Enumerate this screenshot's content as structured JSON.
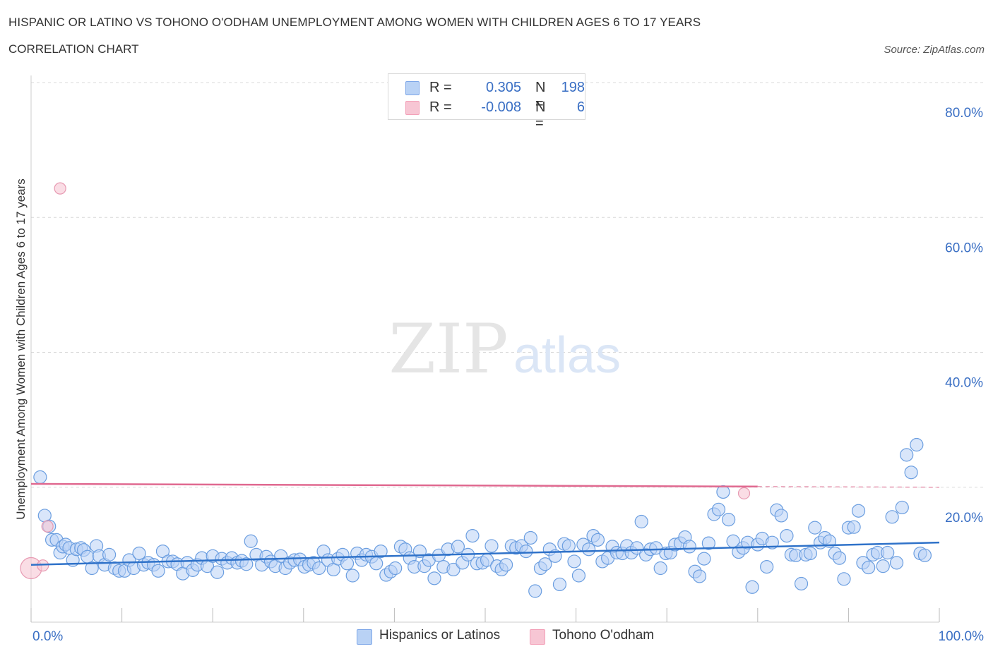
{
  "header": {
    "title": "HISPANIC OR LATINO VS TOHONO O'ODHAM UNEMPLOYMENT AMONG WOMEN WITH CHILDREN AGES 6 TO 17 YEARS",
    "subtitle": "CORRELATION CHART",
    "source": "Source: ZipAtlas.com"
  },
  "watermark": {
    "zip": "ZIP",
    "atlas": "atlas"
  },
  "legend": {
    "r_label": "R =",
    "n_label": "N =",
    "series": [
      {
        "name": "Hispanics or Latinos",
        "r": "0.305",
        "n": "198",
        "color": "#7fa8e8"
      },
      {
        "name": "Tohono O'odham",
        "r": "-0.008",
        "n": "6",
        "color": "#f3a0b8"
      }
    ]
  },
  "colors": {
    "blue_fill": "#b9d2f5",
    "blue_stroke": "#6b9ee0",
    "blue_line": "#2f72c9",
    "pink_fill": "#f7c6d4",
    "pink_stroke": "#e79ab2",
    "pink_line": "#e06990",
    "grid": "#d9d9d9",
    "tick_text": "#3a6fc4"
  },
  "chart_data": {
    "type": "scatter",
    "title": "HISPANIC OR LATINO VS TOHONO O'ODHAM UNEMPLOYMENT AMONG WOMEN WITH CHILDREN AGES 6 TO 17 YEARS",
    "xlabel": "",
    "ylabel": "Unemployment Among Women with Children Ages 6 to 17 years",
    "xlim": [
      0,
      100
    ],
    "ylim": [
      0,
      80
    ],
    "x_tick_labels": [
      "0.0%",
      "100.0%"
    ],
    "y_ticks": [
      20,
      40,
      60,
      80
    ],
    "y_tick_labels": [
      "20.0%",
      "40.0%",
      "60.0%",
      "80.0%"
    ],
    "series": [
      {
        "name": "Hispanics or Latinos",
        "r": 0.305,
        "n": 198,
        "trend": {
          "x": [
            0,
            100
          ],
          "y": [
            8.5,
            11.8
          ]
        },
        "points": [
          [
            1,
            21.5
          ],
          [
            1.5,
            15.8
          ],
          [
            2,
            14.2
          ],
          [
            2.3,
            12.2
          ],
          [
            2.8,
            12.2
          ],
          [
            3.2,
            10.3
          ],
          [
            3.5,
            11.2
          ],
          [
            3.8,
            11.5
          ],
          [
            4.2,
            11
          ],
          [
            4.6,
            9.2
          ],
          [
            5,
            10.8
          ],
          [
            5.5,
            11
          ],
          [
            5.8,
            10.7
          ],
          [
            6.2,
            9.7
          ],
          [
            6.7,
            8
          ],
          [
            7.2,
            11.3
          ],
          [
            7.5,
            9.8
          ],
          [
            8.1,
            8.5
          ],
          [
            8.6,
            10
          ],
          [
            9.2,
            8
          ],
          [
            9.7,
            7.6
          ],
          [
            10.3,
            7.6
          ],
          [
            10.8,
            9.2
          ],
          [
            11.3,
            8
          ],
          [
            11.9,
            10.2
          ],
          [
            12.4,
            8.5
          ],
          [
            12.9,
            8.8
          ],
          [
            13.5,
            8.5
          ],
          [
            14,
            7.6
          ],
          [
            14.5,
            10.5
          ],
          [
            15.1,
            9
          ],
          [
            15.6,
            9
          ],
          [
            16.1,
            8.6
          ],
          [
            16.7,
            7.2
          ],
          [
            17.2,
            8.8
          ],
          [
            17.8,
            7.7
          ],
          [
            18.3,
            8.5
          ],
          [
            18.8,
            9.5
          ],
          [
            19.4,
            8.3
          ],
          [
            20,
            9.8
          ],
          [
            20.5,
            7.4
          ],
          [
            21,
            9.4
          ],
          [
            21.6,
            8.8
          ],
          [
            22.1,
            9.5
          ],
          [
            22.7,
            8.8
          ],
          [
            23.2,
            9.1
          ],
          [
            23.7,
            8.6
          ],
          [
            24.2,
            12
          ],
          [
            24.8,
            10
          ],
          [
            25.4,
            8.5
          ],
          [
            25.9,
            9.7
          ],
          [
            26.4,
            9
          ],
          [
            26.9,
            8.3
          ],
          [
            27.5,
            9.8
          ],
          [
            28,
            8
          ],
          [
            28.5,
            8.8
          ],
          [
            29,
            9.2
          ],
          [
            29.6,
            9.3
          ],
          [
            30.1,
            8.2
          ],
          [
            30.6,
            8.5
          ],
          [
            31.1,
            8.8
          ],
          [
            31.7,
            8
          ],
          [
            32.2,
            10.5
          ],
          [
            32.7,
            9.2
          ],
          [
            33.3,
            7.8
          ],
          [
            33.8,
            9.4
          ],
          [
            34.3,
            10
          ],
          [
            34.8,
            8.7
          ],
          [
            35.4,
            6.9
          ],
          [
            35.9,
            10.2
          ],
          [
            36.4,
            9.2
          ],
          [
            36.9,
            10
          ],
          [
            37.5,
            9.7
          ],
          [
            38,
            8.7
          ],
          [
            38.5,
            10.5
          ],
          [
            39.1,
            7
          ],
          [
            39.6,
            7.5
          ],
          [
            40.1,
            8
          ],
          [
            40.7,
            11.2
          ],
          [
            41.2,
            10.8
          ],
          [
            41.7,
            9.5
          ],
          [
            42.2,
            8.2
          ],
          [
            42.8,
            10.5
          ],
          [
            43.3,
            8.3
          ],
          [
            43.8,
            9.2
          ],
          [
            44.4,
            6.5
          ],
          [
            44.9,
            9.9
          ],
          [
            45.4,
            8.2
          ],
          [
            45.9,
            10.8
          ],
          [
            46.5,
            7.8
          ],
          [
            47,
            11.2
          ],
          [
            47.5,
            8.8
          ],
          [
            48.1,
            10
          ],
          [
            48.6,
            12.8
          ],
          [
            49.1,
            8.7
          ],
          [
            49.7,
            8.8
          ],
          [
            50.2,
            9.2
          ],
          [
            50.7,
            11.3
          ],
          [
            51.3,
            8.3
          ],
          [
            51.8,
            7.8
          ],
          [
            52.3,
            8.5
          ],
          [
            52.9,
            11.3
          ],
          [
            53.4,
            11
          ],
          [
            54,
            11.3
          ],
          [
            54.5,
            10.5
          ],
          [
            55,
            12.5
          ],
          [
            55.5,
            4.6
          ],
          [
            56.1,
            8
          ],
          [
            56.6,
            8.6
          ],
          [
            57.1,
            10.8
          ],
          [
            57.7,
            9.8
          ],
          [
            58.2,
            5.6
          ],
          [
            58.7,
            11.6
          ],
          [
            59.2,
            11.3
          ],
          [
            59.8,
            9
          ],
          [
            60.3,
            6.9
          ],
          [
            60.8,
            11.5
          ],
          [
            61.4,
            10.8
          ],
          [
            61.9,
            12.8
          ],
          [
            62.4,
            12.2
          ],
          [
            62.9,
            9
          ],
          [
            63.5,
            9.5
          ],
          [
            64,
            11.2
          ],
          [
            64.5,
            10.3
          ],
          [
            65.1,
            10.2
          ],
          [
            65.6,
            11.3
          ],
          [
            66.1,
            10.3
          ],
          [
            66.7,
            11
          ],
          [
            67.2,
            14.9
          ],
          [
            67.7,
            10
          ],
          [
            68.2,
            10.8
          ],
          [
            68.8,
            11
          ],
          [
            69.3,
            8
          ],
          [
            69.9,
            10.2
          ],
          [
            70.4,
            10.3
          ],
          [
            70.9,
            11.5
          ],
          [
            71.5,
            11.7
          ],
          [
            72,
            12.6
          ],
          [
            72.5,
            11.2
          ],
          [
            73.1,
            7.5
          ],
          [
            73.6,
            6.8
          ],
          [
            74.1,
            9.4
          ],
          [
            74.6,
            11.7
          ],
          [
            75.2,
            16
          ],
          [
            75.7,
            16.7
          ],
          [
            76.2,
            19.3
          ],
          [
            76.8,
            15.2
          ],
          [
            77.3,
            12
          ],
          [
            77.9,
            10.4
          ],
          [
            78.4,
            11
          ],
          [
            78.9,
            11.8
          ],
          [
            79.4,
            5.2
          ],
          [
            80,
            11.5
          ],
          [
            80.5,
            12.4
          ],
          [
            81,
            8.2
          ],
          [
            81.6,
            11.8
          ],
          [
            82.1,
            16.6
          ],
          [
            82.6,
            15.8
          ],
          [
            83.2,
            12.8
          ],
          [
            83.7,
            10
          ],
          [
            84.2,
            9.9
          ],
          [
            84.8,
            5.7
          ],
          [
            85.3,
            10
          ],
          [
            85.8,
            10.2
          ],
          [
            86.3,
            14
          ],
          [
            86.9,
            11.8
          ],
          [
            87.4,
            12.5
          ],
          [
            87.9,
            12
          ],
          [
            88.5,
            10.2
          ],
          [
            89,
            9.5
          ],
          [
            89.5,
            6.4
          ],
          [
            90,
            14
          ],
          [
            90.6,
            14.1
          ],
          [
            91.1,
            16.5
          ],
          [
            91.6,
            8.8
          ],
          [
            92.2,
            8.1
          ],
          [
            92.7,
            10
          ],
          [
            93.2,
            10.3
          ],
          [
            93.8,
            8.3
          ],
          [
            94.3,
            10.3
          ],
          [
            94.8,
            15.6
          ],
          [
            95.3,
            8.8
          ],
          [
            95.9,
            17
          ],
          [
            96.4,
            24.8
          ],
          [
            96.9,
            22.2
          ],
          [
            97.5,
            26.3
          ],
          [
            97.9,
            10.2
          ],
          [
            98.4,
            9.9
          ]
        ]
      },
      {
        "name": "Tohono O'odham",
        "r": -0.008,
        "n": 6,
        "trend": {
          "x": [
            0,
            80
          ],
          "y": [
            20.5,
            20.1
          ]
        },
        "points": [
          [
            0,
            8
          ],
          [
            1.3,
            8.4
          ],
          [
            1.8,
            14.2
          ],
          [
            3.2,
            64.3
          ],
          [
            78.5,
            19.1
          ]
        ]
      }
    ]
  }
}
